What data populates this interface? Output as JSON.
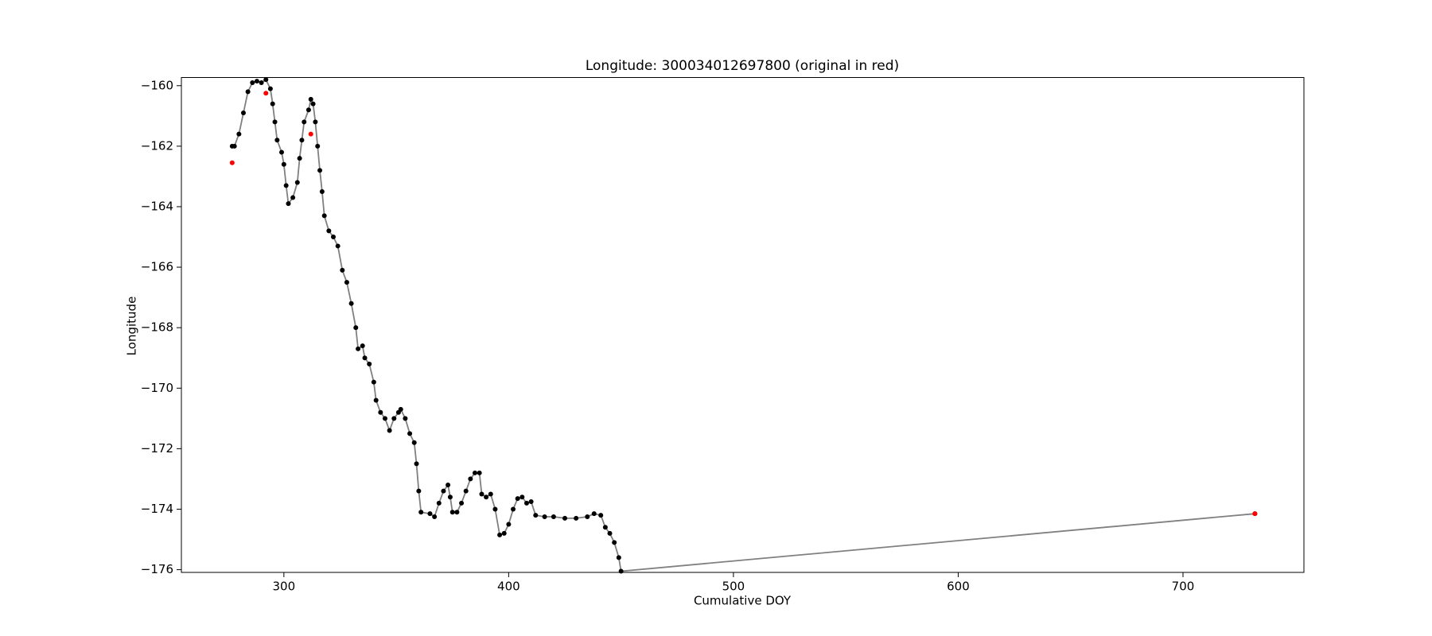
{
  "chart_data": {
    "type": "scatter",
    "title": "Longitude: 300034012697800 (original in red)",
    "xlabel": "Cumulative DOY",
    "ylabel": "Longitude",
    "xlim": [
      254.4,
      753.8
    ],
    "ylim": [
      -176.09,
      -159.73
    ],
    "xticks": [
      300,
      400,
      500,
      600,
      700
    ],
    "yticks": [
      {
        "value": -160,
        "label": "−160"
      },
      {
        "value": -162,
        "label": "−162"
      },
      {
        "value": -164,
        "label": "−164"
      },
      {
        "value": -166,
        "label": "−166"
      },
      {
        "value": -168,
        "label": "−168"
      },
      {
        "value": -170,
        "label": "−170"
      },
      {
        "value": -172,
        "label": "−172"
      },
      {
        "value": -174,
        "label": "−174"
      },
      {
        "value": -176,
        "label": "−176"
      }
    ],
    "series": [
      {
        "color": "#000000",
        "line_color": "#808080",
        "x": [
          277,
          278,
          280,
          282,
          284,
          286,
          288,
          290,
          292,
          294,
          295,
          296,
          297,
          299,
          300,
          301,
          302,
          304,
          306,
          307,
          308,
          309,
          311,
          312,
          313,
          314,
          315,
          316,
          317,
          318,
          320,
          322,
          324,
          326,
          328,
          330,
          332,
          333,
          335,
          336,
          338,
          340,
          341,
          343,
          345,
          347,
          349,
          351,
          352,
          354,
          356,
          358,
          359,
          360,
          361,
          365,
          367,
          369,
          371,
          373,
          374,
          375,
          377,
          379,
          381,
          383,
          385,
          387,
          388,
          390,
          392,
          394,
          396,
          398,
          400,
          402,
          404,
          406,
          408,
          410,
          412,
          416,
          420,
          425,
          430,
          435,
          438,
          441,
          443,
          445,
          447,
          449,
          450,
          732
        ],
        "values": [
          -162.0,
          -162.0,
          -161.6,
          -160.9,
          -160.2,
          -159.9,
          -159.85,
          -159.9,
          -159.8,
          -160.1,
          -160.6,
          -161.2,
          -161.8,
          -162.2,
          -162.6,
          -163.3,
          -163.9,
          -163.7,
          -163.2,
          -162.4,
          -161.8,
          -161.2,
          -160.8,
          -160.45,
          -160.6,
          -161.2,
          -162.0,
          -162.8,
          -163.5,
          -164.3,
          -164.8,
          -165.0,
          -165.3,
          -166.1,
          -166.5,
          -167.2,
          -168.0,
          -168.7,
          -168.6,
          -169.0,
          -169.2,
          -169.8,
          -170.4,
          -170.8,
          -171.0,
          -171.4,
          -171.0,
          -170.8,
          -170.7,
          -171.0,
          -171.5,
          -171.8,
          -172.5,
          -173.4,
          -174.1,
          -174.15,
          -174.25,
          -173.8,
          -173.4,
          -173.2,
          -173.6,
          -174.1,
          -174.1,
          -173.8,
          -173.4,
          -173.0,
          -172.8,
          -172.8,
          -173.5,
          -173.6,
          -173.5,
          -174.0,
          -174.85,
          -174.8,
          -174.5,
          -174.0,
          -173.65,
          -173.6,
          -173.8,
          -173.75,
          -174.2,
          -174.25,
          -174.25,
          -174.3,
          -174.3,
          -174.25,
          -174.15,
          -174.2,
          -174.6,
          -174.8,
          -175.1,
          -175.6,
          -176.05,
          -174.15
        ]
      },
      {
        "color": "#ff0000",
        "x": [
          277,
          292,
          312,
          732
        ],
        "values": [
          -162.55,
          -160.25,
          -161.6,
          -174.15
        ]
      }
    ]
  }
}
